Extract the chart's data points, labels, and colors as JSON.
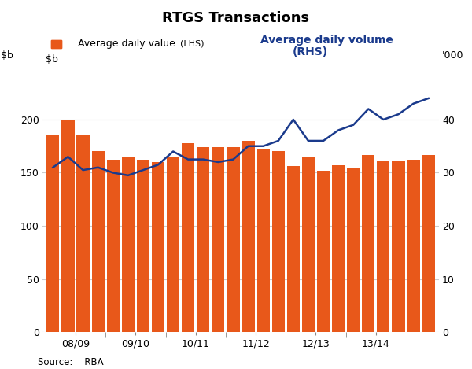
{
  "title": "RTGS Transactions",
  "ylabel_right": "'000",
  "source": "Source:    RBA",
  "bar_color": "#E8581A",
  "line_color": "#1A3A8C",
  "background_color": "#FFFFFF",
  "grid_color": "#CCCCCC",
  "ylim_left": [
    0,
    250
  ],
  "ylim_right": [
    0,
    50
  ],
  "yticks_left": [
    0,
    50,
    100,
    150,
    200
  ],
  "yticks_right": [
    0,
    10,
    20,
    30,
    40
  ],
  "xtick_labels": [
    "08/09",
    "09/10",
    "10/11",
    "11/12",
    "12/13",
    "13/14"
  ],
  "bar_values": [
    185,
    200,
    185,
    170,
    162,
    165,
    162,
    160,
    165,
    178,
    174,
    174,
    174,
    180,
    172,
    170,
    156,
    165,
    152,
    157,
    155,
    167,
    161,
    161,
    162,
    167
  ],
  "line_values_rhs": [
    31,
    33,
    30.5,
    31,
    30,
    29.5,
    30.5,
    31.5,
    34,
    32.5,
    32.5,
    32,
    32.5,
    35,
    35,
    36,
    40,
    36,
    36,
    38,
    39,
    42,
    40,
    41,
    43,
    44
  ],
  "n_bars": 26,
  "legend_bar_label": "Average daily value",
  "legend_bar_sublabel": "(LHS)",
  "legend_line_label": "Average daily volume",
  "legend_line_sublabel": "(RHS)"
}
